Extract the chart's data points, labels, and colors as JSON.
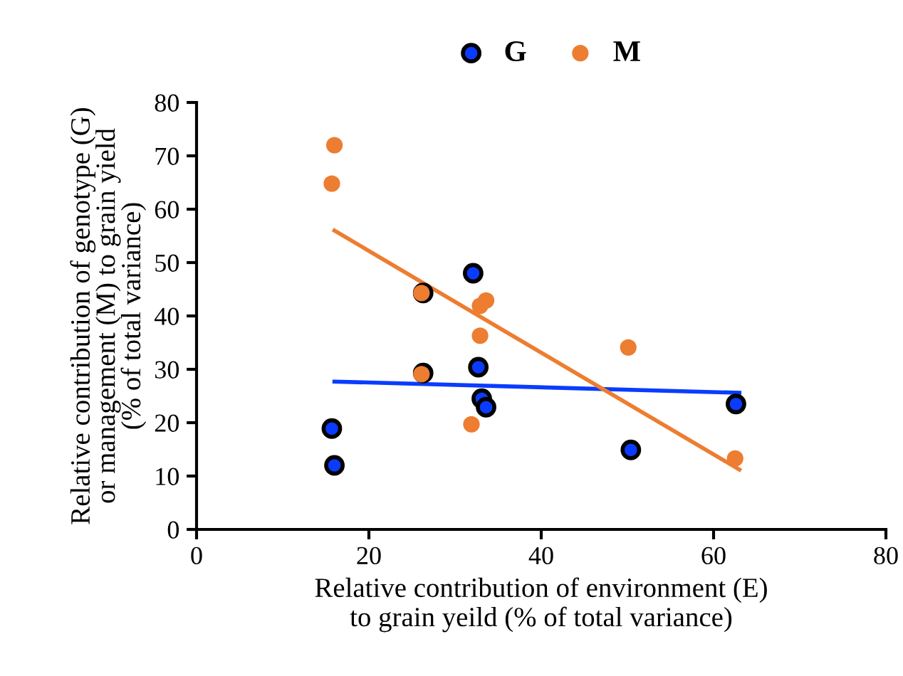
{
  "chart_data": {
    "type": "scatter",
    "xlabel": "Relative contribution of environment (E)\nto grain yeild (% of total variance)",
    "ylabel": "Relative contribution of genotype (G)\nor management (M) to grain yield\n(% of total variance)",
    "series": [
      {
        "name": "G",
        "color": "#0a3cff",
        "x": [
          15.7,
          16.0,
          32.1,
          32.7,
          33.1,
          33.6,
          26.3,
          26.3,
          50.4,
          62.6
        ],
        "values": [
          18.9,
          12.0,
          48.0,
          30.4,
          24.5,
          22.9,
          44.3,
          29.3,
          14.9,
          23.5
        ]
      },
      {
        "name": "M",
        "color": "#ed7d31",
        "x": [
          16.0,
          15.7,
          26.1,
          26.1,
          31.9,
          32.9,
          32.9,
          33.6,
          50.1,
          62.5
        ],
        "values": [
          72.0,
          64.8,
          44.3,
          29.1,
          19.7,
          36.3,
          41.9,
          42.9,
          34.1,
          13.3
        ]
      },
      {
        "type": "line",
        "marker": "none",
        "color": "#0a3cff",
        "x": [
          16,
          63
        ],
        "values": [
          27.7,
          25.6
        ]
      },
      {
        "type": "line",
        "marker": "none",
        "color": "#ed7d31",
        "x": [
          16,
          63
        ],
        "values": [
          56.0,
          11.2
        ]
      }
    ],
    "xlim": [
      0,
      80
    ],
    "xticks": [
      0,
      20,
      40,
      60,
      80
    ],
    "ylim": [
      0,
      80
    ],
    "yticks": [
      0,
      10,
      20,
      30,
      40,
      50,
      60,
      70,
      80
    ],
    "marker": "circle",
    "legend": "top",
    "grid": false
  }
}
